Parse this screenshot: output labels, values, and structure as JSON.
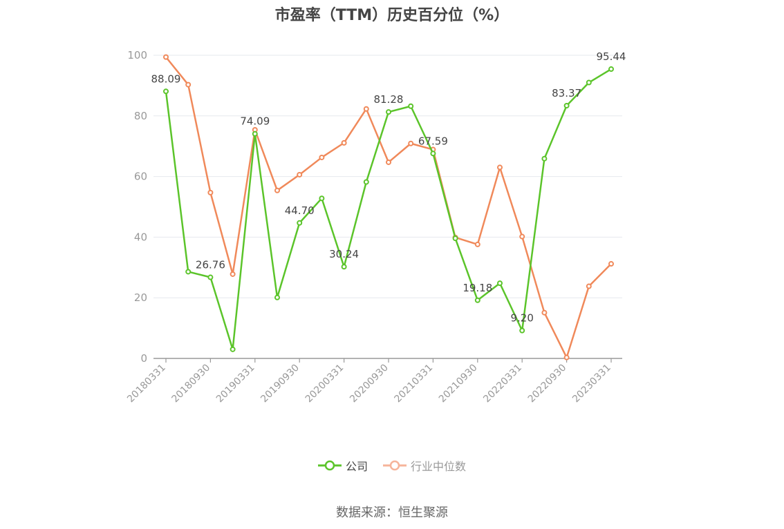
{
  "chart_data": {
    "type": "line",
    "title": "市盈率（TTM）历史百分位（%）",
    "x": [
      "20180331",
      "20180630",
      "20180930",
      "20181231",
      "20190331",
      "20190630",
      "20190930",
      "20191231",
      "20200331",
      "20200630",
      "20200930",
      "20201231",
      "20210331",
      "20210630",
      "20210930",
      "20211231",
      "20220331",
      "20220630",
      "20220930",
      "20221231",
      "20230331"
    ],
    "x_tick_labels": [
      "20180331",
      "20180930",
      "20190331",
      "20190930",
      "20200331",
      "20200930",
      "20210331",
      "20210930",
      "20220331",
      "20220930",
      "20230331"
    ],
    "ylim": [
      0,
      100
    ],
    "y_ticks": [
      0,
      20,
      40,
      60,
      80,
      100
    ],
    "grid": true,
    "legend_position": "bottom",
    "series": [
      {
        "name": "公司",
        "color": "#5bc42a",
        "values": [
          88.09,
          28.6,
          26.76,
          3.0,
          74.09,
          20.1,
          44.7,
          52.8,
          30.24,
          58.2,
          81.28,
          83.2,
          67.59,
          39.6,
          19.18,
          24.8,
          9.2,
          65.9,
          83.37,
          91.0,
          95.44
        ],
        "labels": [
          "88.09",
          "",
          "26.76",
          "",
          "74.09",
          "",
          "44.70",
          "",
          "30.24",
          "",
          "81.28",
          "",
          "67.59",
          "",
          "19.18",
          "",
          "9.20",
          "",
          "83.37",
          "",
          "95.44"
        ]
      },
      {
        "name": "行业中位数",
        "color": "#f0895a",
        "values": [
          99.4,
          90.3,
          54.7,
          27.8,
          75.4,
          55.4,
          60.6,
          66.3,
          71.1,
          82.3,
          64.7,
          70.9,
          68.9,
          39.9,
          37.6,
          63.0,
          40.2,
          15.1,
          0.3,
          23.8,
          31.2
        ]
      }
    ]
  },
  "source_note": "数据来源：恒生聚源"
}
